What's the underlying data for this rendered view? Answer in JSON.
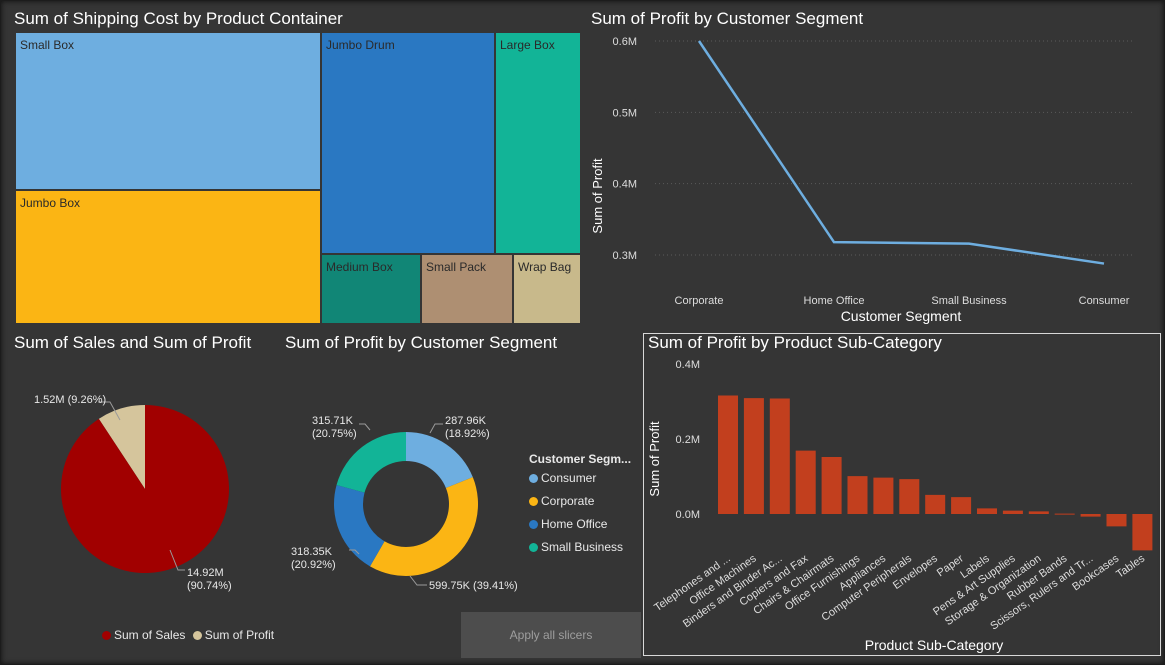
{
  "treemap": {
    "title": "Sum of Shipping Cost by Product Container",
    "tiles": [
      {
        "label": "Small Box",
        "color": "#6eaee0"
      },
      {
        "label": "Jumbo Drum",
        "color": "#2a78c2"
      },
      {
        "label": "Large Box",
        "color": "#12b497"
      },
      {
        "label": "Jumbo Box",
        "color": "#fbb514"
      },
      {
        "label": "Medium Box",
        "color": "#118676"
      },
      {
        "label": "Small Pack",
        "color": "#ae8f72"
      },
      {
        "label": "Wrap Bag",
        "color": "#c8b98b"
      }
    ]
  },
  "chart_data": [
    {
      "type": "line",
      "title": "Sum of Profit by Customer Segment",
      "xlabel": "Customer Segment",
      "ylabel": "Sum of Profit",
      "categories": [
        "Corporate",
        "Home Office",
        "Small Business",
        "Consumer"
      ],
      "values": [
        600000,
        318000,
        316000,
        288000
      ],
      "yticks": [
        "0.3M",
        "0.4M",
        "0.5M",
        "0.6M"
      ],
      "ylim": [
        0.3,
        0.6
      ],
      "color": "#6eaee0"
    },
    {
      "type": "pie",
      "title": "Sum of Sales and Sum of Profit",
      "slices": [
        {
          "name": "Sum of Sales",
          "value": "14.92M",
          "percent": "(90.74%)",
          "fraction": 0.9074,
          "color": "#a10000"
        },
        {
          "name": "Sum of Profit",
          "value": "1.52M",
          "percent": "(9.26%)",
          "fraction": 0.0926,
          "color": "#d5c59c"
        }
      ],
      "labels": {
        "profit": "1.52M (9.26%)",
        "sales_value": "14.92M",
        "sales_percent": "(90.74%)"
      },
      "legend": [
        "Sum of Sales",
        "Sum of Profit"
      ]
    },
    {
      "type": "pie",
      "title": "Sum of Profit by Customer Segment",
      "legend_title": "Customer Segm...",
      "slices": [
        {
          "name": "Consumer",
          "label": "287.96K",
          "percent": "(18.92%)",
          "fraction": 0.1892,
          "color": "#6eaee0"
        },
        {
          "name": "Corporate",
          "label": "599.75K (39.41%)",
          "fraction": 0.3941,
          "color": "#fbb514"
        },
        {
          "name": "Home Office",
          "label": "318.35K",
          "percent": "(20.92%)",
          "fraction": 0.2092,
          "color": "#2a78c2"
        },
        {
          "name": "Small Business",
          "label": "315.71K",
          "percent": "(20.75%)",
          "fraction": 0.2075,
          "color": "#12b497"
        }
      ]
    },
    {
      "type": "bar",
      "title": "Sum of Profit by Product Sub-Category",
      "xlabel": "Product Sub-Category",
      "ylabel": "Sum of Profit",
      "categories": [
        "Telephones and ...",
        "Office Machines",
        "Binders and Binder Ac...",
        "Copiers and Fax",
        "Chairs & Chairmats",
        "Office Furnishings",
        "Appliances",
        "Computer Peripherals",
        "Envelopes",
        "Paper",
        "Labels",
        "Pens & Art Supplies",
        "Storage & Organization",
        "Rubber Bands",
        "Scissors, Rulers and Tr...",
        "Bookcases",
        "Tables"
      ],
      "values": [
        316000,
        309000,
        308000,
        169000,
        152000,
        101000,
        97000,
        93000,
        51000,
        45000,
        15000,
        9000,
        7000,
        1000,
        -7000,
        -33000,
        -97000
      ],
      "yticks": [
        "0.0M",
        "0.2M",
        "0.4M"
      ],
      "color": "#c23f1e"
    }
  ],
  "button": {
    "label": "Apply all slicers"
  }
}
